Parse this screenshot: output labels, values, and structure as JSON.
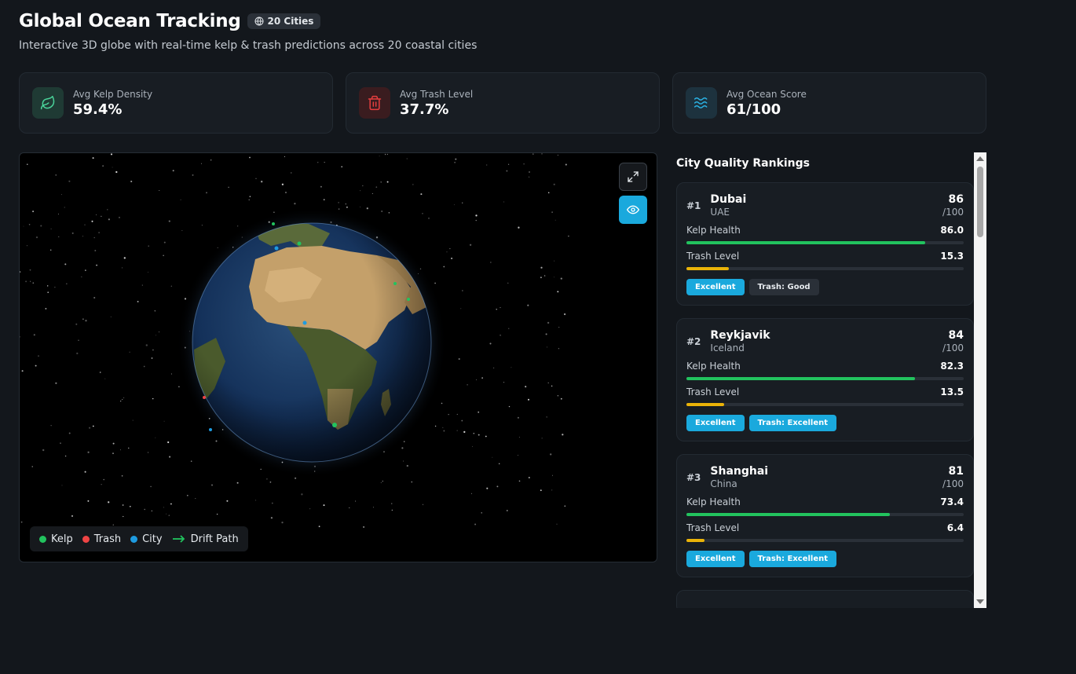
{
  "header": {
    "title": "Global Ocean Tracking",
    "badge": "20 Cities",
    "subtitle": "Interactive 3D globe with real-time kelp & trash predictions across 20 coastal cities"
  },
  "stats": [
    {
      "label": "Avg Kelp Density",
      "value": "59.4%",
      "icon": "leaf-icon",
      "color": "#22c35e"
    },
    {
      "label": "Avg Trash Level",
      "value": "37.7%",
      "icon": "trash-icon",
      "color": "#dc2626"
    },
    {
      "label": "Avg Ocean Score",
      "value": "61/100",
      "icon": "waves-icon",
      "color": "#1aa9dd"
    }
  ],
  "legend": {
    "kelp": "Kelp",
    "trash": "Trash",
    "city": "City",
    "drift": "Drift Path",
    "kelp_color": "#22c35e",
    "trash_color": "#ef4444",
    "city_color": "#1e9be0"
  },
  "rankings": {
    "title": "City Quality Rankings",
    "kelp_label": "Kelp Health",
    "trash_label": "Trash Level",
    "cities": [
      {
        "rank": "#1",
        "name": "Dubai",
        "country": "UAE",
        "score": "86",
        "score_max": "/100",
        "kelp": "86.0",
        "kelp_pct": 86.0,
        "trash": "15.3",
        "trash_pct": 15.3,
        "quality_tag": "Excellent",
        "trash_tag": "Trash: Good"
      },
      {
        "rank": "#2",
        "name": "Reykjavik",
        "country": "Iceland",
        "score": "84",
        "score_max": "/100",
        "kelp": "82.3",
        "kelp_pct": 82.3,
        "trash": "13.5",
        "trash_pct": 13.5,
        "quality_tag": "Excellent",
        "trash_tag": "Trash: Excellent"
      },
      {
        "rank": "#3",
        "name": "Shanghai",
        "country": "China",
        "score": "81",
        "score_max": "/100",
        "kelp": "73.4",
        "kelp_pct": 73.4,
        "trash": "6.4",
        "trash_pct": 6.4,
        "quality_tag": "Excellent",
        "trash_tag": "Trash: Excellent"
      }
    ]
  }
}
